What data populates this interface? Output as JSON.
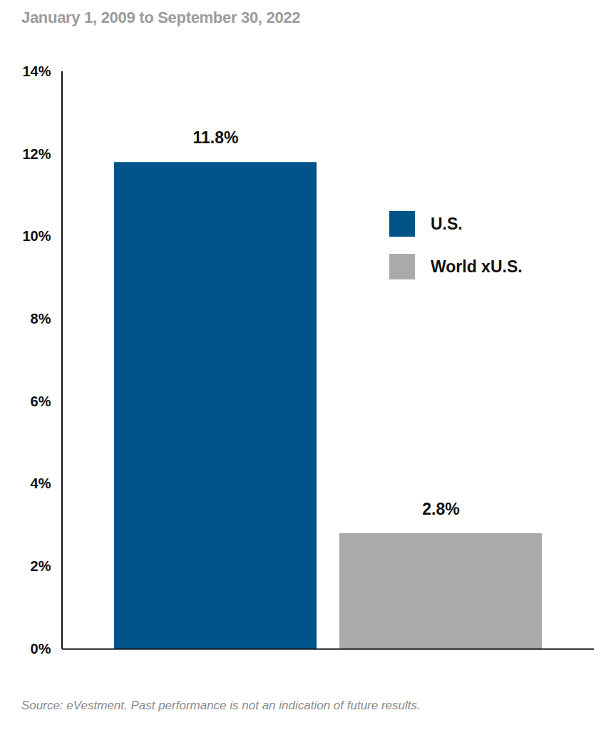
{
  "chart_data": {
    "type": "bar",
    "subtitle": "January 1, 2009 to September 30, 2022",
    "categories": [
      "U.S.",
      "World xU.S."
    ],
    "values": [
      11.8,
      2.8
    ],
    "value_labels": [
      "11.8%",
      "2.8%"
    ],
    "colors": [
      "#00548a",
      "#aaaaaa"
    ],
    "ylim": [
      0,
      14
    ],
    "yticks": [
      {
        "value": 0,
        "label": "0%"
      },
      {
        "value": 2,
        "label": "2%"
      },
      {
        "value": 4,
        "label": "4%"
      },
      {
        "value": 6,
        "label": "6%"
      },
      {
        "value": 8,
        "label": "8%"
      },
      {
        "value": 10,
        "label": "10%"
      },
      {
        "value": 12,
        "label": "12%"
      },
      {
        "value": 14,
        "label": "14%"
      }
    ],
    "grid": false,
    "legend": "right",
    "data_labels": true,
    "tick_labels": "y",
    "caption": "Source: eVestment. Past performance is not an indication of future results."
  }
}
